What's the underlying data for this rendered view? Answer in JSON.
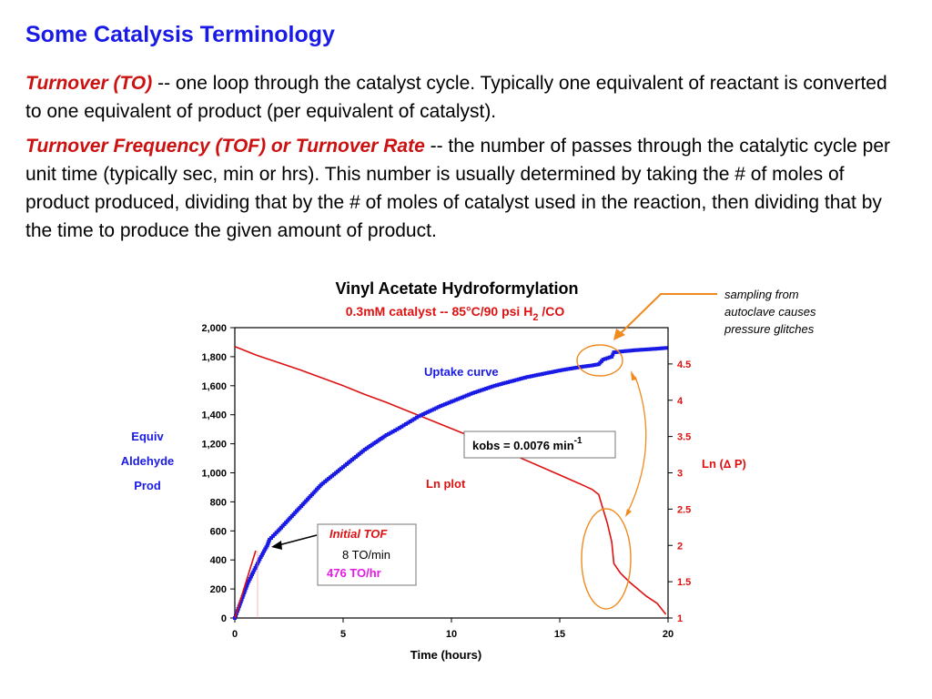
{
  "slide": {
    "title": "Some Catalysis Terminology",
    "p1_term": "Turnover (TO)",
    "p1_text": " -- one loop through the catalyst cycle.  Typically one equivalent of reactant is converted to one equivalent of product (per equivalent of catalyst).",
    "p2_term": "Turnover Frequency (TOF) or Turnover Rate",
    "p2_text": " --  the number of passes through the catalytic cycle per unit time (typically sec, min or hrs).  This number is usually determined by taking the # of moles of product produced, dividing that by the # of moles of catalyst used in the reaction, then dividing that by the time to produce the given amount of product."
  },
  "colors": {
    "title": "#1a1ae6",
    "term": "#cc1111",
    "uptake": "#1a1ae6",
    "ln": "#dd1111",
    "annotation": "#f08a1e",
    "magenta": "#e619e6"
  },
  "chart_data": {
    "type": "scatter",
    "title": "Vinyl Acetate Hydroformylation",
    "subtitle_pre": "0.3mM catalyst --  85°C/90 psi H",
    "subtitle_sub": "2",
    "subtitle_post": " /CO",
    "xlabel": "Time (hours)",
    "ylabel_lines": [
      "Equiv",
      "Aldehyde",
      "Prod"
    ],
    "y2label_pre": "Ln (",
    "y2label_delta": "∆",
    "y2label_post": " P)",
    "xlim": [
      0,
      20
    ],
    "ylim": [
      0,
      2000
    ],
    "y2lim": [
      1,
      5
    ],
    "x_ticks": [
      "0",
      "5",
      "10",
      "15",
      "20"
    ],
    "y_ticks": [
      "0",
      "200",
      "400",
      "600",
      "800",
      "1,000",
      "1,200",
      "1,400",
      "1,600",
      "1,800",
      "2,000"
    ],
    "y2_ticks": [
      "1",
      "1.5",
      "2",
      "2.5",
      "3",
      "3.5",
      "4",
      "4.5"
    ],
    "series": [
      {
        "name": "Uptake curve",
        "axis": "left",
        "points": [
          [
            0,
            0
          ],
          [
            0.2,
            80
          ],
          [
            0.4,
            160
          ],
          [
            0.6,
            240
          ],
          [
            0.8,
            300
          ],
          [
            1.0,
            360
          ],
          [
            1.2,
            420
          ],
          [
            1.5,
            500
          ],
          [
            1.6,
            540
          ],
          [
            2,
            600
          ],
          [
            2.5,
            680
          ],
          [
            3,
            760
          ],
          [
            3.5,
            840
          ],
          [
            4,
            920
          ],
          [
            4.5,
            980
          ],
          [
            5,
            1040
          ],
          [
            5.5,
            1100
          ],
          [
            6,
            1160
          ],
          [
            6.5,
            1210
          ],
          [
            7,
            1260
          ],
          [
            7.5,
            1300
          ],
          [
            8,
            1345
          ],
          [
            8.5,
            1390
          ],
          [
            9,
            1425
          ],
          [
            9.5,
            1460
          ],
          [
            10,
            1490
          ],
          [
            10.5,
            1520
          ],
          [
            11,
            1550
          ],
          [
            11.5,
            1575
          ],
          [
            12,
            1600
          ],
          [
            12.5,
            1620
          ],
          [
            13,
            1640
          ],
          [
            13.5,
            1660
          ],
          [
            14,
            1675
          ],
          [
            14.5,
            1690
          ],
          [
            15,
            1705
          ],
          [
            15.5,
            1718
          ],
          [
            16,
            1730
          ],
          [
            16.5,
            1740
          ],
          [
            16.8,
            1748
          ],
          [
            17.0,
            1780
          ],
          [
            17.4,
            1800
          ],
          [
            17.5,
            1830
          ],
          [
            18,
            1838
          ],
          [
            18.5,
            1845
          ],
          [
            19,
            1850
          ],
          [
            19.5,
            1855
          ],
          [
            19.9,
            1860
          ]
        ]
      },
      {
        "name": "Ln plot",
        "axis": "right",
        "points": [
          [
            0,
            4.74
          ],
          [
            1,
            4.62
          ],
          [
            2,
            4.52
          ],
          [
            3,
            4.42
          ],
          [
            4,
            4.31
          ],
          [
            5,
            4.2
          ],
          [
            6,
            4.08
          ],
          [
            7,
            3.97
          ],
          [
            8,
            3.85
          ],
          [
            9,
            3.73
          ],
          [
            10,
            3.61
          ],
          [
            11,
            3.49
          ],
          [
            12,
            3.36
          ],
          [
            13,
            3.23
          ],
          [
            14,
            3.1
          ],
          [
            15,
            2.97
          ],
          [
            16,
            2.84
          ],
          [
            16.5,
            2.77
          ],
          [
            16.8,
            2.7
          ],
          [
            17.0,
            2.5
          ],
          [
            17.2,
            2.3
          ],
          [
            17.4,
            2.05
          ],
          [
            17.5,
            1.75
          ],
          [
            17.8,
            1.62
          ],
          [
            18.2,
            1.5
          ],
          [
            18.6,
            1.4
          ],
          [
            19,
            1.3
          ],
          [
            19.5,
            1.2
          ],
          [
            19.9,
            1.05
          ]
        ]
      }
    ],
    "annotations": {
      "uptake_label": "Uptake curve",
      "ln_label": "Ln plot",
      "kobs_text": "kobs = 0.0076 min",
      "kobs_sup": "-1",
      "tof_title": "Initial TOF",
      "tof_min": "8 TO/min",
      "tof_hr": "476 TO/hr",
      "note_lines": [
        "sampling from",
        "autoclave causes",
        "pressure glitches"
      ]
    }
  }
}
